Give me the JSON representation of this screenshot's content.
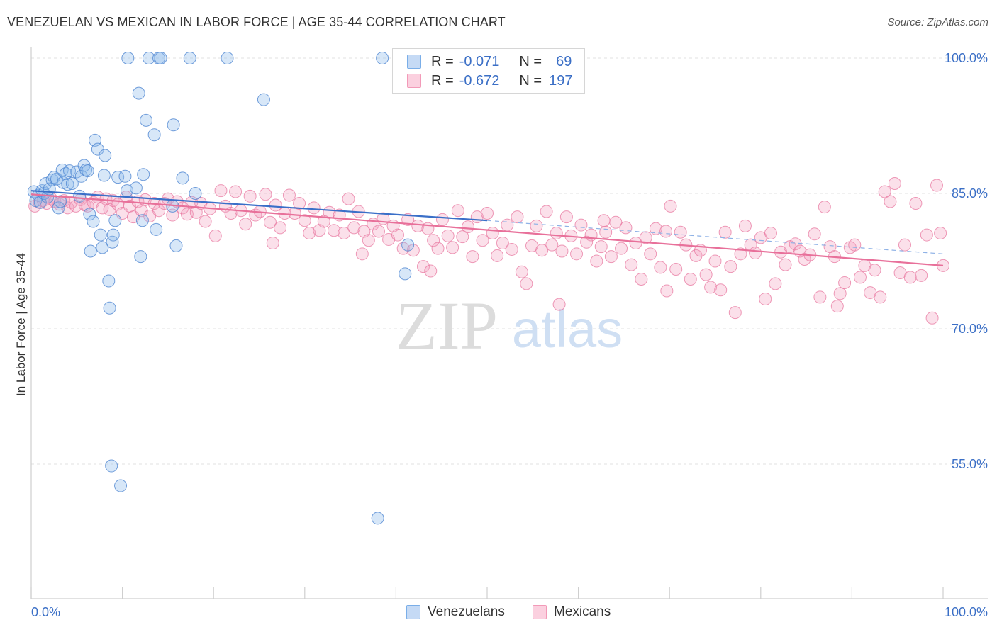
{
  "title": "VENEZUELAN VS MEXICAN IN LABOR FORCE | AGE 35-44 CORRELATION CHART",
  "source": "Source: ZipAtlas.com",
  "watermark": {
    "zip": "ZIP",
    "atlas": "atlas"
  },
  "legend": {
    "rows": [
      {
        "r_label": "R =",
        "r_value": "-0.071",
        "n_label": "N =",
        "n_value": "69",
        "color": "#7aaee8"
      },
      {
        "r_label": "R =",
        "r_value": "-0.672",
        "n_label": "N =",
        "n_value": "197",
        "color": "#f29ab8"
      }
    ]
  },
  "bottom_legend": {
    "venezuelans": "Venezuelans",
    "mexicans": "Mexicans"
  },
  "chart_data": {
    "type": "scatter",
    "title": "VENEZUELAN VS MEXICAN IN LABOR FORCE | AGE 35-44 CORRELATION CHART",
    "xlabel": "",
    "ylabel": "In Labor Force | Age 35-44",
    "xlim": [
      0,
      100
    ],
    "ylim": [
      40,
      102
    ],
    "x_tick_labels": [
      "0.0%",
      "100.0%"
    ],
    "y_ticks": [
      55,
      70,
      85,
      100
    ],
    "y_tick_labels": [
      "55.0%",
      "70.0%",
      "85.0%",
      "100.0%"
    ],
    "grid": true,
    "legend_position": "top-center",
    "colors": {
      "venezuelans": "#7aaee8",
      "mexicans": "#f29ab8",
      "ven_line": "#3a6fc8",
      "mex_line": "#e8709a",
      "tick_text": "#3b6fc6"
    },
    "series": [
      {
        "name": "Venezuelans",
        "r": -0.071,
        "n": 69,
        "trend": {
          "x": [
            0,
            50
          ],
          "y": [
            85.3,
            82.0
          ],
          "dashed_to": [
            100,
            78.3
          ]
        },
        "points": [
          [
            0.3,
            85.2
          ],
          [
            0.5,
            84.2
          ],
          [
            0.8,
            84.8
          ],
          [
            1.0,
            84.0
          ],
          [
            1.2,
            85.3
          ],
          [
            1.4,
            85.0
          ],
          [
            1.6,
            86.1
          ],
          [
            1.8,
            84.6
          ],
          [
            2.0,
            85.5
          ],
          [
            2.3,
            86.5
          ],
          [
            2.5,
            86.8
          ],
          [
            2.8,
            86.6
          ],
          [
            3.0,
            83.4
          ],
          [
            3.2,
            84.1
          ],
          [
            3.4,
            87.6
          ],
          [
            3.5,
            86.2
          ],
          [
            3.8,
            87.2
          ],
          [
            4.0,
            86.0
          ],
          [
            4.2,
            87.5
          ],
          [
            4.5,
            86.1
          ],
          [
            5.0,
            87.4
          ],
          [
            5.3,
            84.7
          ],
          [
            5.5,
            86.9
          ],
          [
            5.8,
            88.1
          ],
          [
            6.0,
            87.6
          ],
          [
            6.2,
            87.5
          ],
          [
            6.4,
            82.7
          ],
          [
            6.5,
            78.6
          ],
          [
            6.8,
            81.9
          ],
          [
            7.0,
            90.9
          ],
          [
            7.3,
            89.9
          ],
          [
            7.6,
            80.4
          ],
          [
            7.8,
            79.0
          ],
          [
            8.0,
            87.0
          ],
          [
            8.1,
            89.2
          ],
          [
            8.5,
            75.3
          ],
          [
            8.6,
            72.3
          ],
          [
            8.8,
            54.8
          ],
          [
            8.9,
            79.6
          ],
          [
            9.0,
            80.4
          ],
          [
            9.2,
            82.0
          ],
          [
            9.5,
            86.8
          ],
          [
            9.8,
            52.6
          ],
          [
            10.3,
            86.9
          ],
          [
            10.5,
            85.3
          ],
          [
            10.6,
            100.0
          ],
          [
            11.5,
            85.6
          ],
          [
            11.8,
            96.1
          ],
          [
            12.0,
            78.0
          ],
          [
            12.2,
            82.0
          ],
          [
            12.3,
            87.1
          ],
          [
            12.6,
            93.1
          ],
          [
            12.9,
            100.0
          ],
          [
            13.5,
            91.5
          ],
          [
            13.7,
            81.0
          ],
          [
            14.0,
            100.0
          ],
          [
            14.2,
            100.0
          ],
          [
            15.5,
            83.6
          ],
          [
            15.6,
            92.6
          ],
          [
            15.9,
            79.2
          ],
          [
            16.6,
            86.7
          ],
          [
            17.4,
            100.0
          ],
          [
            18.0,
            85.0
          ],
          [
            21.5,
            100.0
          ],
          [
            25.5,
            95.4
          ],
          [
            38.0,
            49.0
          ],
          [
            38.5,
            100.0
          ],
          [
            41.0,
            76.1
          ],
          [
            41.3,
            79.3
          ]
        ]
      },
      {
        "name": "Mexicans",
        "r": -0.672,
        "n": 197,
        "trend": {
          "x": [
            0,
            100
          ],
          "y": [
            84.9,
            77.0
          ]
        },
        "points": [
          [
            0.4,
            83.6
          ],
          [
            0.9,
            84.0
          ],
          [
            1.3,
            84.2
          ],
          [
            1.7,
            83.9
          ],
          [
            2.2,
            84.4
          ],
          [
            2.6,
            84.1
          ],
          [
            3.1,
            83.8
          ],
          [
            3.6,
            84.2
          ],
          [
            4.0,
            83.4
          ],
          [
            4.4,
            84.0
          ],
          [
            4.9,
            83.6
          ],
          [
            5.4,
            84.3
          ],
          [
            5.9,
            83.7
          ],
          [
            6.2,
            83.6
          ],
          [
            6.8,
            84.0
          ],
          [
            7.3,
            84.6
          ],
          [
            7.8,
            83.4
          ],
          [
            8.2,
            84.4
          ],
          [
            8.6,
            83.2
          ],
          [
            9.0,
            84.2
          ],
          [
            9.5,
            83.8
          ],
          [
            10.0,
            82.8
          ],
          [
            10.4,
            84.6
          ],
          [
            10.8,
            83.6
          ],
          [
            11.2,
            82.4
          ],
          [
            11.7,
            84.1
          ],
          [
            12.1,
            83.1
          ],
          [
            12.5,
            84.3
          ],
          [
            13.0,
            82.5
          ],
          [
            13.5,
            83.9
          ],
          [
            14.0,
            83.1
          ],
          [
            14.6,
            83.9
          ],
          [
            15.0,
            84.4
          ],
          [
            15.5,
            82.6
          ],
          [
            16.0,
            84.1
          ],
          [
            16.6,
            83.4
          ],
          [
            17.1,
            82.7
          ],
          [
            17.6,
            84.0
          ],
          [
            18.1,
            82.9
          ],
          [
            18.6,
            83.9
          ],
          [
            19.1,
            81.9
          ],
          [
            19.6,
            83.3
          ],
          [
            20.2,
            80.3
          ],
          [
            20.8,
            85.3
          ],
          [
            21.3,
            83.6
          ],
          [
            21.9,
            82.8
          ],
          [
            22.4,
            85.2
          ],
          [
            23.0,
            83.1
          ],
          [
            23.5,
            81.6
          ],
          [
            24.0,
            84.7
          ],
          [
            24.6,
            82.6
          ],
          [
            25.1,
            83.0
          ],
          [
            25.7,
            84.9
          ],
          [
            26.2,
            81.8
          ],
          [
            26.8,
            83.7
          ],
          [
            27.3,
            81.2
          ],
          [
            27.8,
            82.8
          ],
          [
            28.3,
            84.8
          ],
          [
            28.9,
            82.8
          ],
          [
            29.4,
            83.9
          ],
          [
            30.0,
            82.0
          ],
          [
            30.5,
            80.6
          ],
          [
            31.0,
            83.4
          ],
          [
            31.6,
            80.9
          ],
          [
            32.1,
            81.9
          ],
          [
            32.7,
            82.9
          ],
          [
            33.2,
            80.9
          ],
          [
            33.8,
            82.6
          ],
          [
            34.3,
            80.6
          ],
          [
            34.8,
            84.4
          ],
          [
            35.4,
            81.2
          ],
          [
            35.9,
            83.0
          ],
          [
            36.5,
            80.8
          ],
          [
            37.0,
            79.8
          ],
          [
            37.5,
            81.6
          ],
          [
            38.1,
            80.8
          ],
          [
            38.6,
            82.2
          ],
          [
            39.2,
            79.9
          ],
          [
            39.7,
            81.4
          ],
          [
            40.2,
            80.4
          ],
          [
            40.8,
            78.9
          ],
          [
            41.3,
            82.1
          ],
          [
            41.9,
            78.7
          ],
          [
            42.4,
            81.4
          ],
          [
            43.0,
            76.9
          ],
          [
            43.5,
            81.1
          ],
          [
            44.1,
            79.8
          ],
          [
            44.6,
            78.9
          ],
          [
            45.1,
            82.1
          ],
          [
            45.7,
            80.3
          ],
          [
            46.2,
            79.0
          ],
          [
            46.8,
            83.1
          ],
          [
            47.3,
            80.2
          ],
          [
            47.9,
            81.3
          ],
          [
            48.4,
            78.0
          ],
          [
            48.9,
            82.4
          ],
          [
            49.5,
            79.8
          ],
          [
            50.0,
            82.8
          ],
          [
            50.6,
            80.6
          ],
          [
            51.1,
            78.1
          ],
          [
            51.7,
            79.5
          ],
          [
            52.2,
            81.5
          ],
          [
            52.7,
            78.8
          ],
          [
            53.3,
            82.4
          ],
          [
            53.8,
            76.3
          ],
          [
            54.3,
            75.0
          ],
          [
            54.9,
            79.2
          ],
          [
            55.4,
            81.4
          ],
          [
            56.0,
            78.7
          ],
          [
            56.5,
            83.0
          ],
          [
            57.1,
            79.3
          ],
          [
            57.6,
            80.6
          ],
          [
            58.2,
            78.6
          ],
          [
            58.7,
            82.4
          ],
          [
            59.2,
            80.3
          ],
          [
            59.8,
            78.3
          ],
          [
            60.3,
            81.5
          ],
          [
            60.9,
            79.6
          ],
          [
            61.4,
            80.4
          ],
          [
            62.0,
            77.5
          ],
          [
            62.5,
            79.1
          ],
          [
            63.0,
            80.7
          ],
          [
            63.6,
            78.0
          ],
          [
            64.1,
            81.8
          ],
          [
            64.7,
            78.9
          ],
          [
            65.2,
            81.2
          ],
          [
            65.8,
            77.1
          ],
          [
            66.3,
            79.5
          ],
          [
            66.9,
            75.5
          ],
          [
            67.4,
            80.1
          ],
          [
            67.9,
            78.3
          ],
          [
            68.5,
            81.1
          ],
          [
            69.0,
            76.8
          ],
          [
            69.6,
            80.8
          ],
          [
            70.1,
            83.6
          ],
          [
            70.7,
            76.6
          ],
          [
            71.2,
            80.7
          ],
          [
            71.8,
            79.3
          ],
          [
            72.3,
            75.5
          ],
          [
            72.9,
            78.1
          ],
          [
            73.4,
            78.7
          ],
          [
            74.0,
            76.0
          ],
          [
            74.5,
            74.6
          ],
          [
            75.0,
            77.5
          ],
          [
            75.6,
            74.3
          ],
          [
            76.1,
            80.7
          ],
          [
            76.7,
            76.9
          ],
          [
            77.2,
            71.8
          ],
          [
            77.8,
            78.3
          ],
          [
            78.3,
            81.4
          ],
          [
            78.9,
            79.3
          ],
          [
            79.4,
            78.4
          ],
          [
            80.0,
            80.1
          ],
          [
            80.5,
            73.3
          ],
          [
            81.1,
            80.6
          ],
          [
            81.6,
            75.0
          ],
          [
            82.2,
            78.5
          ],
          [
            82.7,
            77.1
          ],
          [
            83.2,
            79.1
          ],
          [
            83.8,
            79.4
          ],
          [
            84.3,
            78.6
          ],
          [
            84.8,
            77.7
          ],
          [
            85.4,
            78.2
          ],
          [
            85.9,
            80.5
          ],
          [
            86.5,
            73.5
          ],
          [
            87.0,
            83.5
          ],
          [
            87.6,
            79.1
          ],
          [
            88.1,
            78.0
          ],
          [
            88.7,
            73.9
          ],
          [
            89.2,
            75.1
          ],
          [
            89.8,
            79.0
          ],
          [
            90.3,
            79.3
          ],
          [
            90.9,
            75.7
          ],
          [
            91.4,
            77.0
          ],
          [
            92.0,
            74.0
          ],
          [
            92.5,
            76.5
          ],
          [
            93.1,
            73.5
          ],
          [
            93.6,
            85.2
          ],
          [
            94.2,
            84.1
          ],
          [
            94.7,
            86.1
          ],
          [
            95.3,
            76.2
          ],
          [
            95.8,
            79.3
          ],
          [
            96.4,
            75.7
          ],
          [
            97.0,
            83.9
          ],
          [
            97.6,
            75.9
          ],
          [
            98.2,
            80.4
          ],
          [
            98.8,
            71.2
          ],
          [
            99.3,
            85.9
          ],
          [
            99.7,
            80.6
          ],
          [
            100.0,
            77.0
          ],
          [
            26.5,
            79.5
          ],
          [
            43.8,
            76.4
          ],
          [
            57.9,
            72.7
          ],
          [
            69.7,
            74.2
          ],
          [
            88.4,
            72.5
          ],
          [
            62.8,
            82.0
          ],
          [
            36.3,
            78.3
          ]
        ]
      }
    ]
  }
}
